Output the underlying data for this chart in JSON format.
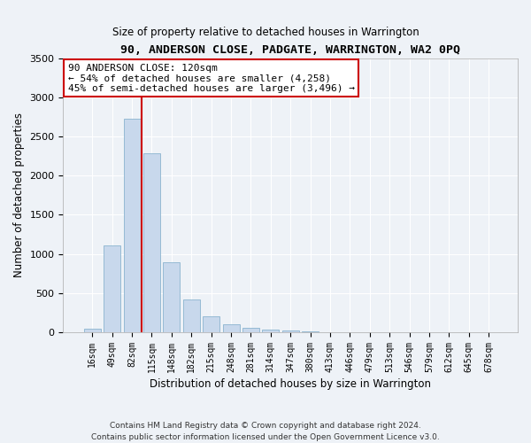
{
  "title": "90, ANDERSON CLOSE, PADGATE, WARRINGTON, WA2 0PQ",
  "subtitle": "Size of property relative to detached houses in Warrington",
  "xlabel": "Distribution of detached houses by size in Warrington",
  "ylabel": "Number of detached properties",
  "bar_color": "#c8d8ec",
  "bar_edge_color": "#7aaac8",
  "background_color": "#eef2f7",
  "grid_color": "#ffffff",
  "categories": [
    "16sqm",
    "49sqm",
    "82sqm",
    "115sqm",
    "148sqm",
    "182sqm",
    "215sqm",
    "248sqm",
    "281sqm",
    "314sqm",
    "347sqm",
    "380sqm",
    "413sqm",
    "446sqm",
    "479sqm",
    "513sqm",
    "546sqm",
    "579sqm",
    "612sqm",
    "645sqm",
    "678sqm"
  ],
  "values": [
    50,
    1110,
    2730,
    2280,
    890,
    420,
    200,
    105,
    60,
    40,
    25,
    10,
    5,
    2,
    1,
    0,
    0,
    0,
    0,
    0,
    0
  ],
  "vline_x": 2.5,
  "vline_color": "#cc0000",
  "annotation_title": "90 ANDERSON CLOSE: 120sqm",
  "annotation_line1": "← 54% of detached houses are smaller (4,258)",
  "annotation_line2": "45% of semi-detached houses are larger (3,496) →",
  "annotation_box_color": "#ffffff",
  "annotation_box_edge_color": "#cc0000",
  "ylim": [
    0,
    3500
  ],
  "yticks": [
    0,
    500,
    1000,
    1500,
    2000,
    2500,
    3000,
    3500
  ],
  "footer_line1": "Contains HM Land Registry data © Crown copyright and database right 2024.",
  "footer_line2": "Contains public sector information licensed under the Open Government Licence v3.0."
}
